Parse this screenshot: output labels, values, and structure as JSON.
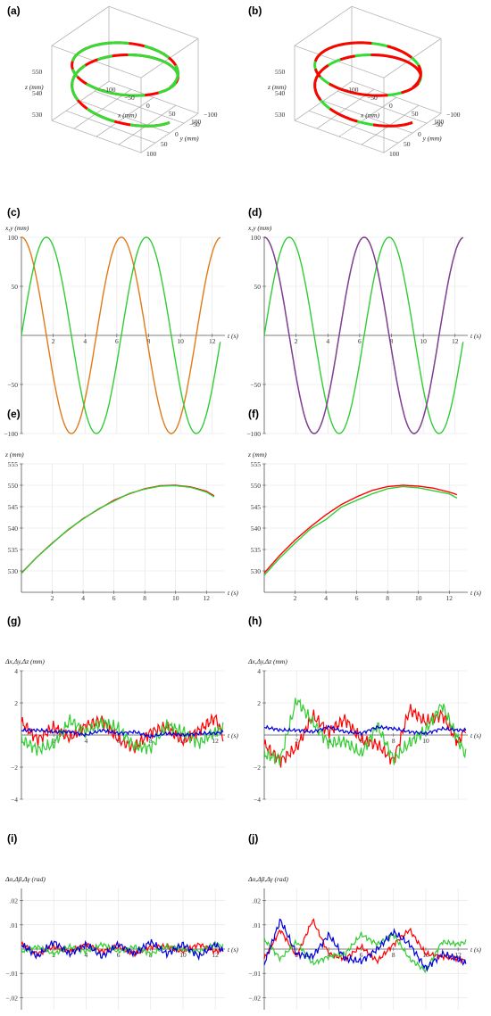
{
  "panel_labels": [
    "(a)",
    "(b)",
    "(c)",
    "(d)",
    "(e)",
    "(f)",
    "(g)",
    "(h)",
    "(i)",
    "(j)"
  ],
  "chart_data": [
    {
      "id": "a",
      "type": "line3d",
      "title": "",
      "xlabel": "x (mm)",
      "ylabel": "y (mm)",
      "zlabel": "z (mm)",
      "xticks": [
        "−100",
        "−50",
        "0",
        "50",
        "100"
      ],
      "yticks": [
        "100",
        "50",
        "0",
        "−50",
        "−100"
      ],
      "zticks": [
        "550",
        "540",
        "530"
      ],
      "series": [
        {
          "color": "#ff0000",
          "role": "helix base"
        },
        {
          "color": "#33dd33",
          "role": "helix overlay",
          "coverage": 0.7
        }
      ],
      "curve": {
        "radius": 100,
        "t_range": [
          0,
          12.56
        ],
        "z": "550 - 0.2*(t - 9.5)^2"
      }
    },
    {
      "id": "b",
      "type": "line3d",
      "title": "",
      "xlabel": "x (mm)",
      "ylabel": "y (mm)",
      "zlabel": "z (mm)",
      "xticks": [
        "−100",
        "−50",
        "0",
        "50",
        "100"
      ],
      "yticks": [
        "100",
        "50",
        "0",
        "−50",
        "−100"
      ],
      "zticks": [
        "550",
        "540",
        "530"
      ],
      "series": [
        {
          "color": "#33dd33",
          "role": "helix base"
        },
        {
          "color": "#ff0000",
          "role": "helix overlay",
          "coverage": 0.75
        }
      ],
      "curve": {
        "radius": 100,
        "t_range": [
          0,
          12.56
        ],
        "z": "550 - 0.2*(t - 9.5)^2"
      }
    },
    {
      "id": "c",
      "type": "line",
      "title": "",
      "xlabel": "t (s)",
      "ylabel": "x,y (mm)",
      "xlim": [
        0,
        12.8
      ],
      "ylim": [
        -100,
        100
      ],
      "xticks": [
        2,
        4,
        6,
        8,
        10,
        12
      ],
      "yticks": [
        -100,
        -50,
        50,
        100
      ],
      "x": [
        0,
        0.5,
        1,
        1.5,
        2,
        2.5,
        3,
        3.5,
        4,
        4.5,
        5,
        5.5,
        6,
        6.5,
        7,
        7.5,
        8,
        8.5,
        9,
        9.5,
        10,
        10.5,
        11,
        11.5,
        12,
        12.5
      ],
      "series": [
        {
          "color": "#e07a1a",
          "values": [
            100,
            87.8,
            54,
            7.1,
            -41.6,
            -80.1,
            -99,
            -93.6,
            -65.4,
            -21.1,
            28.4,
            70.9,
            96,
            97.7,
            75.4,
            34.7,
            -14.6,
            -60.2,
            -91.1,
            -99.7,
            -83.9,
            -47.6,
            0.4,
            48.3,
            84.4,
            99.7
          ]
        },
        {
          "color": "#33cc33",
          "values": [
            0,
            47.9,
            84.1,
            99.7,
            90.9,
            59.8,
            14.1,
            -35.1,
            -75.7,
            -97.8,
            -95.9,
            -70.6,
            -27.9,
            21.5,
            65.7,
            93.8,
            98.9,
            79.8,
            41.2,
            -7.5,
            -54.4,
            -87.9,
            -100,
            -87.5,
            -53.7,
            -6.6
          ]
        }
      ]
    },
    {
      "id": "d",
      "type": "line",
      "title": "",
      "xlabel": "t (s)",
      "ylabel": "x,y (mm)",
      "xlim": [
        0,
        12.8
      ],
      "ylim": [
        -100,
        100
      ],
      "xticks": [
        2,
        4,
        6,
        8,
        10,
        12
      ],
      "yticks": [
        -100,
        -50,
        50,
        100
      ],
      "x": [
        0,
        0.5,
        1,
        1.5,
        2,
        2.5,
        3,
        3.5,
        4,
        4.5,
        5,
        5.5,
        6,
        6.5,
        7,
        7.5,
        8,
        8.5,
        9,
        9.5,
        10,
        10.5,
        11,
        11.5,
        12,
        12.5
      ],
      "series": [
        {
          "color": "#e07a1a",
          "values": [
            100,
            87.8,
            54,
            7.1,
            -41.6,
            -80.1,
            -99,
            -93.6,
            -65.4,
            -21.1,
            28.4,
            70.9,
            96,
            97.7,
            75.4,
            34.7,
            -14.6,
            -60.2,
            -91.1,
            -99.7,
            -83.9,
            -47.6,
            0.4,
            48.3,
            84.4,
            99.7
          ]
        },
        {
          "color": "#33cc33",
          "values": [
            0,
            47.9,
            84.1,
            99.7,
            90.9,
            59.8,
            14.1,
            -35.1,
            -75.7,
            -97.8,
            -95.9,
            -70.6,
            -27.9,
            21.5,
            65.7,
            93.8,
            98.9,
            79.8,
            41.2,
            -7.5,
            -54.4,
            -87.9,
            -100,
            -87.5,
            -53.7,
            -6.6
          ]
        },
        {
          "color": "#7a3fa0",
          "role": "measured overlay",
          "values": [
            100,
            87.8,
            54,
            7.1,
            -41.6,
            -80.1,
            -99,
            -93.6,
            -65.4,
            -21.1,
            28.4,
            70.9,
            96,
            97.7,
            75.4,
            34.7,
            -14.6,
            -60.2,
            -91.1,
            -99.7,
            -83.9,
            -47.6,
            0.4,
            48.3,
            84.4,
            99.7
          ]
        }
      ]
    },
    {
      "id": "e",
      "type": "line",
      "title": "",
      "xlabel": "t (s)",
      "ylabel": "z (mm)",
      "xlim": [
        0,
        13.2
      ],
      "ylim": [
        525,
        555
      ],
      "xticks": [
        2,
        4,
        6,
        8,
        10,
        12
      ],
      "yticks": [
        530,
        535,
        540,
        545,
        550,
        555
      ],
      "x": [
        0,
        1,
        2,
        3,
        4,
        5,
        6,
        7,
        8,
        9,
        10,
        11,
        12,
        12.5
      ],
      "series": [
        {
          "color": "#ff0000",
          "values": [
            529.5,
            533.2,
            536.5,
            539.5,
            542.2,
            544.4,
            546.5,
            548.0,
            549.2,
            549.9,
            550.0,
            549.6,
            548.6,
            547.5
          ]
        },
        {
          "color": "#33cc33",
          "values": [
            529.4,
            533.2,
            536.4,
            539.6,
            542.1,
            544.5,
            546.3,
            548.1,
            549.1,
            549.8,
            549.9,
            549.5,
            548.4,
            547.3
          ]
        }
      ]
    },
    {
      "id": "f",
      "type": "line",
      "title": "",
      "xlabel": "t (s)",
      "ylabel": "z (mm)",
      "xlim": [
        0,
        13.2
      ],
      "ylim": [
        525,
        555
      ],
      "xticks": [
        2,
        4,
        6,
        8,
        10,
        12
      ],
      "yticks": [
        530,
        535,
        540,
        545,
        550,
        555
      ],
      "x": [
        0,
        1,
        2,
        3,
        4,
        5,
        6,
        7,
        8,
        9,
        10,
        11,
        12,
        12.5
      ],
      "series": [
        {
          "color": "#ff0000",
          "values": [
            529.5,
            533.6,
            537.2,
            540.3,
            543.1,
            545.5,
            547.3,
            548.8,
            549.7,
            550.0,
            549.8,
            549.3,
            548.4,
            547.8
          ]
        },
        {
          "color": "#33cc33",
          "values": [
            529.0,
            533.0,
            536.5,
            539.8,
            542.0,
            544.9,
            546.5,
            548.0,
            549.2,
            549.7,
            549.4,
            548.7,
            548.0,
            547.0
          ]
        }
      ]
    },
    {
      "id": "g",
      "type": "line",
      "title": "",
      "xlabel": "t (s)",
      "ylabel": "Δx,Δy,Δz (mm)",
      "xlim": [
        0,
        12.6
      ],
      "ylim": [
        -4,
        4
      ],
      "xticks": [
        2,
        4,
        6,
        8,
        10,
        12
      ],
      "yticks": [
        -4,
        -2,
        2,
        4
      ],
      "x": [
        0,
        1,
        2,
        3,
        4,
        5,
        6,
        7,
        8,
        9,
        10,
        11,
        12,
        12.5
      ],
      "series": [
        {
          "color": "#ff0000",
          "values": [
            0.8,
            -0.3,
            0.5,
            -0.2,
            0.6,
            0.9,
            -0.3,
            -0.8,
            0.2,
            0.5,
            -0.4,
            0.3,
            1.1,
            -0.1
          ]
        },
        {
          "color": "#33cc33",
          "values": [
            -0.3,
            -0.9,
            -0.6,
            0.9,
            0.2,
            0.8,
            0.4,
            -0.7,
            -0.8,
            0.6,
            0.2,
            -0.5,
            0.2,
            0.4
          ]
        },
        {
          "color": "#0000dd",
          "values": [
            0.3,
            0.3,
            0.2,
            0.2,
            0.0,
            0.3,
            0.1,
            0.2,
            -0.1,
            0.1,
            0.0,
            0.1,
            0.1,
            0.2
          ]
        }
      ]
    },
    {
      "id": "h",
      "type": "line",
      "title": "",
      "xlabel": "t (s)",
      "ylabel": "Δx,Δy,Δz (mm)",
      "xlim": [
        0,
        12.6
      ],
      "ylim": [
        -4,
        4
      ],
      "xticks": [
        2,
        4,
        6,
        8,
        10,
        12
      ],
      "yticks": [
        -4,
        -2,
        2,
        4
      ],
      "x": [
        0,
        1,
        2,
        3,
        4,
        5,
        6,
        7,
        8,
        9,
        10,
        11,
        12,
        12.5
      ],
      "series": [
        {
          "color": "#ff0000",
          "values": [
            -0.6,
            -1.6,
            -0.8,
            1.2,
            0.2,
            1.0,
            -0.3,
            -0.6,
            -1.6,
            1.6,
            0.8,
            1.3,
            -0.5,
            0.5
          ]
        },
        {
          "color": "#33cc33",
          "values": [
            -1.2,
            -1.5,
            2.2,
            0.8,
            -0.5,
            -0.4,
            -1.2,
            0.6,
            -1.5,
            -0.5,
            0.3,
            1.9,
            -0.3,
            -1.3
          ]
        },
        {
          "color": "#0000dd",
          "values": [
            0.5,
            0.3,
            0.3,
            0.2,
            0.5,
            0.2,
            0.1,
            0.5,
            0.4,
            0.2,
            0.1,
            0.4,
            0.3,
            0.3
          ]
        }
      ]
    },
    {
      "id": "i",
      "type": "line",
      "title": "",
      "xlabel": "t (s)",
      "ylabel": "Δα,Δβ,Δγ (rad)",
      "xlim": [
        0,
        12.6
      ],
      "ylim": [
        -0.025,
        0.025
      ],
      "xticks": [
        2,
        4,
        6,
        8,
        10,
        12
      ],
      "yticks": [
        -0.02,
        -0.01,
        0.01,
        0.02
      ],
      "x": [
        0,
        1,
        2,
        3,
        4,
        5,
        6,
        7,
        8,
        9,
        10,
        11,
        12,
        12.5
      ],
      "series": [
        {
          "color": "#ff0000",
          "values": [
            0.002,
            -0.002,
            0.001,
            -0.001,
            0.002,
            -0.001,
            0.001,
            -0.002,
            0.001,
            0.001,
            -0.001,
            0.002,
            -0.001,
            0.0
          ]
        },
        {
          "color": "#33cc33",
          "values": [
            -0.001,
            0.001,
            -0.002,
            0.001,
            -0.001,
            0.002,
            -0.001,
            0.001,
            -0.002,
            0.001,
            0.0,
            -0.001,
            0.002,
            0.001
          ]
        },
        {
          "color": "#0000dd",
          "values": [
            0.002,
            -0.003,
            0.003,
            -0.002,
            0.002,
            -0.003,
            0.002,
            -0.002,
            0.003,
            -0.002,
            0.002,
            -0.003,
            0.002,
            -0.001
          ]
        }
      ]
    },
    {
      "id": "j",
      "type": "line",
      "title": "",
      "xlabel": "t (s)",
      "ylabel": "Δα,Δβ,Δγ (rad)",
      "xlim": [
        0,
        12.6
      ],
      "ylim": [
        -0.025,
        0.025
      ],
      "xticks": [
        2,
        4,
        6,
        8,
        10,
        12
      ],
      "yticks": [
        -0.02,
        -0.01,
        0.01,
        0.02
      ],
      "x": [
        0,
        1,
        2,
        3,
        4,
        5,
        6,
        7,
        8,
        9,
        10,
        11,
        12,
        12.5
      ],
      "series": [
        {
          "color": "#ff0000",
          "values": [
            -0.004,
            0.008,
            -0.003,
            0.012,
            -0.002,
            -0.004,
            0.001,
            -0.005,
            0.002,
            0.008,
            -0.002,
            -0.003,
            -0.004,
            -0.005
          ]
        },
        {
          "color": "#33cc33",
          "values": [
            0.004,
            -0.004,
            0.003,
            -0.006,
            -0.003,
            -0.002,
            0.006,
            0.002,
            0.006,
            -0.004,
            -0.009,
            0.003,
            0.002,
            0.003
          ]
        },
        {
          "color": "#0000dd",
          "values": [
            -0.006,
            0.012,
            -0.002,
            -0.003,
            0.006,
            -0.004,
            -0.005,
            0.0,
            0.007,
            0.002,
            -0.008,
            -0.002,
            -0.004,
            -0.006
          ]
        }
      ]
    }
  ]
}
